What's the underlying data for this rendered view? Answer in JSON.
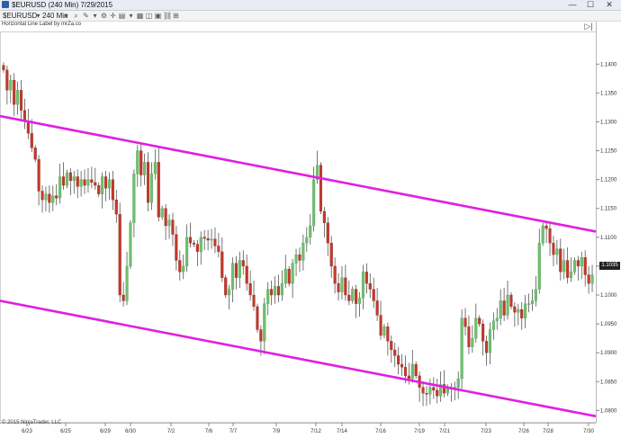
{
  "window": {
    "title": "$EURUSD (240 Min) 7/29/2015"
  },
  "toolbar": {
    "instrument": "$EURUSD",
    "interval": "240 Min"
  },
  "indicator_label": "Horizontal Line Label by mrZa.co",
  "copyright": "© 2015 NinjaTrader, LLC",
  "last_price": "1.1035",
  "colors": {
    "channel": "#e020e0",
    "up": "#6fbf6f",
    "down": "#c0392b",
    "wick": "#555555"
  },
  "chart_data": {
    "type": "candlestick",
    "ylim": [
      1.0785,
      1.1455
    ],
    "y_ticks": [
      "1.1400",
      "1.1350",
      "1.1300",
      "1.1250",
      "1.1200",
      "1.1150",
      "1.1100",
      "1.1050",
      "1.1000",
      "1.0950",
      "1.0900",
      "1.0850",
      "1.0800"
    ],
    "x_ticks": [
      "6/23",
      "6/25",
      "6/29",
      "6/30",
      "7/2",
      "7/6",
      "7/7",
      "7/9",
      "7/12",
      "7/14",
      "7/16",
      "7/19",
      "7/21",
      "7/23",
      "7/26",
      "7/28",
      "7/30"
    ],
    "closes": [
      1.139,
      1.1355,
      1.1372,
      1.133,
      1.1355,
      1.132,
      1.13,
      1.128,
      1.1255,
      1.1235,
      1.118,
      1.1165,
      1.1175,
      1.116,
      1.1172,
      1.1168,
      1.1205,
      1.119,
      1.1212,
      1.1198,
      1.1205,
      1.1188,
      1.12,
      1.119,
      1.12,
      1.1195,
      1.119,
      1.1175,
      1.1205,
      1.1185,
      1.12,
      1.1165,
      1.114,
      1.1,
      1.099,
      1.105,
      1.1125,
      1.121,
      1.125,
      1.1208,
      1.123,
      1.116,
      1.121,
      1.123,
      1.1135,
      1.115,
      1.112,
      1.113,
      1.1105,
      1.106,
      1.104,
      1.105,
      1.11,
      1.109,
      1.1088,
      1.1075,
      1.11,
      1.1098,
      1.1095,
      1.1097,
      1.1085,
      1.1075,
      1.103,
      1.1,
      1.101,
      1.1055,
      1.103,
      1.106,
      1.105,
      1.102,
      1.1,
      1.098,
      1.094,
      1.092,
      1.0985,
      1.101,
      1.1,
      1.1015,
      1.1,
      1.102,
      1.1045,
      1.102,
      1.1055,
      1.107,
      1.106,
      1.109,
      1.11,
      1.112,
      1.12,
      1.1225,
      1.1145,
      1.1125,
      1.109,
      1.105,
      1.102,
      1.1005,
      1.103,
      1.1,
      1.099,
      1.101,
      1.0985,
      1.0995,
      1.104,
      1.102,
      1.101,
      1.099,
      1.0965,
      1.093,
      1.0945,
      1.092,
      1.0905,
      1.0895,
      1.088,
      1.0875,
      1.086,
      1.0855,
      1.088,
      1.086,
      1.084,
      1.083,
      1.0828,
      1.084,
      1.0835,
      1.0825,
      1.0845,
      1.083,
      1.084,
      1.084,
      1.084,
      1.0855,
      1.096,
      1.0945,
      1.091,
      1.0925,
      1.096,
      1.095,
      1.092,
      1.09,
      1.094,
      1.0955,
      1.096,
      1.099,
      1.0965,
      1.1,
      1.098,
      1.097,
      1.0975,
      1.096,
      1.0985,
      1.0985,
      1.099,
      1.101,
      1.109,
      1.112,
      1.1115,
      1.109,
      1.107,
      1.108,
      1.104,
      1.106,
      1.103,
      1.104,
      1.106,
      1.105,
      1.1065,
      1.1035,
      1.102,
      1.1035
    ],
    "channel_lines": [
      {
        "from": [
          "6/22",
          1.131
        ],
        "to": [
          "7/30",
          1.111
        ]
      },
      {
        "from": [
          "6/22",
          1.099
        ],
        "to": [
          "7/30",
          1.079
        ]
      }
    ]
  }
}
